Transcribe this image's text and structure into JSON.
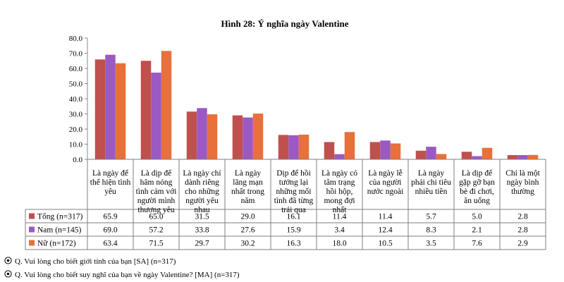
{
  "chart_data": {
    "type": "bar",
    "title": "Hình 28: Ý nghĩa ngày Valentine",
    "ylim": [
      0,
      80
    ],
    "yticks": [
      "0.0",
      "10.0",
      "20.0",
      "30.0",
      "40.0",
      "50.0",
      "60.0",
      "70.0",
      "80.0"
    ],
    "grid": false,
    "legend": "table-left",
    "categories": [
      [
        "Là ngày để",
        "thể hiện tình",
        "yêu"
      ],
      [
        "Là dịp để",
        "hâm nóng",
        "tình cảm với",
        "người mình",
        "thương yêu"
      ],
      [
        "Là ngày chỉ",
        "dành riêng",
        "cho những",
        "người yêu",
        "nhau"
      ],
      [
        "Là ngày",
        "lãng mạn",
        "nhất trong",
        "năm"
      ],
      [
        "Dịp để hồi",
        "tưởng lại",
        "những mối",
        "tình đã từng",
        "trải qua"
      ],
      [
        "Là ngày có",
        "tâm trạng",
        "hồi hộp,",
        "mong đợi",
        "nhất"
      ],
      [
        "Là ngày lễ",
        "của người",
        "nước ngoài"
      ],
      [
        "Là ngày",
        "phải chi tiêu",
        "nhiều tiền"
      ],
      [
        "Là dịp để",
        "gặp gỡ bạn",
        "bè đi chơi,",
        "ăn uống"
      ],
      [
        "Chỉ là một",
        "ngày bình",
        "thường"
      ]
    ],
    "series": [
      {
        "name": "Tổng (n=317)",
        "color": "#C0504D",
        "values": [
          65.9,
          65.0,
          31.5,
          29.0,
          16.1,
          11.4,
          11.4,
          5.7,
          5.0,
          2.8
        ],
        "labels": [
          "65.9",
          "65.0",
          "31.5",
          "29.0",
          "16.1",
          "11.4",
          "11.4",
          "5.7",
          "5.0",
          "2.8"
        ]
      },
      {
        "name": "Nam (n=145)",
        "color": "#9B59C2",
        "values": [
          69.0,
          57.2,
          33.8,
          27.6,
          15.9,
          3.4,
          12.4,
          8.3,
          2.1,
          2.8
        ],
        "labels": [
          "69.0",
          "57.2",
          "33.8",
          "27.6",
          "15.9",
          "3.4",
          "12.4",
          "8.3",
          "2.1",
          "2.8"
        ]
      },
      {
        "name": "Nữ (n=172)",
        "color": "#E8703A",
        "values": [
          63.4,
          71.5,
          29.7,
          30.2,
          16.3,
          18.0,
          10.5,
          3.5,
          7.6,
          2.9
        ],
        "labels": [
          "63.4",
          "71.5",
          "29.7",
          "30.2",
          "16.3",
          "18.0",
          "10.5",
          "3.5",
          "7.6",
          "2.9"
        ]
      }
    ]
  },
  "footnotes": [
    "Q. Vui lòng cho biết giới tính của bạn [SA] (n=317)",
    "Q. Vui lòng cho biết suy nghĩ của bạn về ngày Valentine? [MA] (n=317)"
  ]
}
